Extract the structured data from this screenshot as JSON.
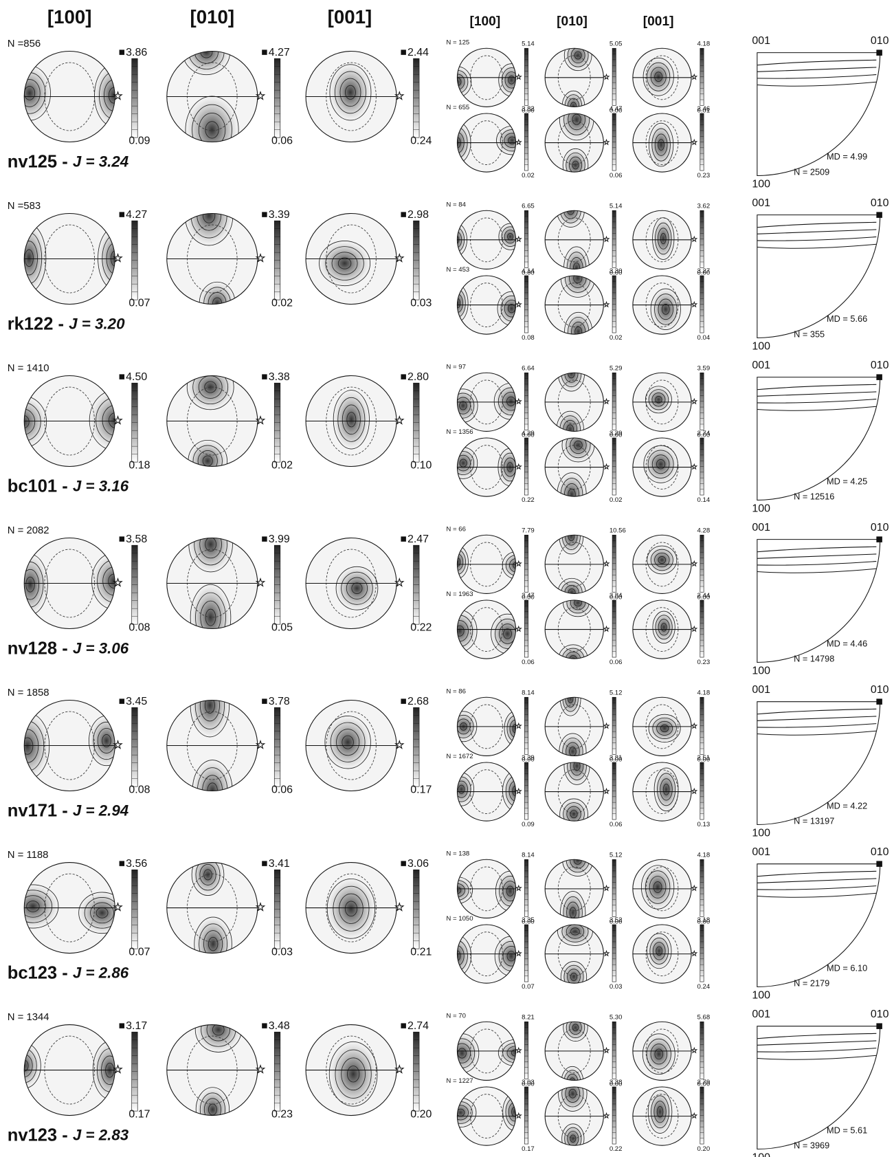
{
  "headers": {
    "large": [
      "[100]",
      "[010]",
      "[001]"
    ],
    "small": [
      "[100]",
      "[010]",
      "[001]"
    ]
  },
  "ipf_labels": {
    "top_left": "001",
    "top_right": "010",
    "bottom": "100"
  },
  "samples": [
    {
      "name": "nv125 -",
      "j": "J = 3.24",
      "n": "N =856",
      "large": [
        [
          "3.86",
          "0.09"
        ],
        [
          "4.27",
          "0.06"
        ],
        [
          "2.44",
          "0.24"
        ]
      ],
      "small": [
        {
          "n": "N = 125",
          "figs": [
            [
              "5.14",
              "0.00"
            ],
            [
              "5.05",
              "0.00"
            ],
            [
              "4.18",
              "0.01"
            ]
          ]
        },
        {
          "n": "N = 655",
          "figs": [
            [
              "3.82",
              "0.02"
            ],
            [
              "4.47",
              "0.06"
            ],
            [
              "2.46",
              "0.23"
            ]
          ]
        }
      ],
      "ipf": {
        "md": "MD = 4.99",
        "n": "N = 2509"
      }
    },
    {
      "name": "rk122 -",
      "j": "J = 3.20",
      "n": "N =583",
      "large": [
        [
          "4.27",
          "0.07"
        ],
        [
          "3.39",
          "0.02"
        ],
        [
          "2.98",
          "0.03"
        ]
      ],
      "small": [
        {
          "n": "N = 84",
          "figs": [
            [
              "6.65",
              "0.00"
            ],
            [
              "5.14",
              "0.00"
            ],
            [
              "3.62",
              "0.00"
            ]
          ]
        },
        {
          "n": "N = 453",
          "figs": [
            [
              "4.14",
              "0.08"
            ],
            [
              "3.30",
              "0.02"
            ],
            [
              "3.27",
              "0.04"
            ]
          ]
        }
      ],
      "ipf": {
        "md": "MD = 5.66",
        "n": "N = 355"
      }
    },
    {
      "name": "bc101 -",
      "j": "J = 3.16",
      "n": "N = 1410",
      "large": [
        [
          "4.50",
          "0.18"
        ],
        [
          "3.38",
          "0.02"
        ],
        [
          "2.80",
          "0.10"
        ]
      ],
      "small": [
        {
          "n": "N = 97",
          "figs": [
            [
              "6.64",
              "0.00"
            ],
            [
              "5.29",
              "0.00"
            ],
            [
              "3.59",
              "0.00"
            ]
          ]
        },
        {
          "n": "N = 1356",
          "figs": [
            [
              "4.29",
              "0.22"
            ],
            [
              "3.29",
              "0.02"
            ],
            [
              "2.74",
              "0.14"
            ]
          ]
        }
      ],
      "ipf": {
        "md": "MD = 4.25",
        "n": "N = 12516"
      }
    },
    {
      "name": "nv128 -",
      "j": "J = 3.06",
      "n": "N = 2082",
      "large": [
        [
          "3.58",
          "0.08"
        ],
        [
          "3.99",
          "0.05"
        ],
        [
          "2.47",
          "0.22"
        ]
      ],
      "small": [
        {
          "n": "N = 66",
          "figs": [
            [
              "7.79",
              "0.00"
            ],
            [
              "10.56",
              "0.00"
            ],
            [
              "4.28",
              "0.00"
            ]
          ]
        },
        {
          "n": "N = 1963",
          "figs": [
            [
              "3.47",
              "0.06"
            ],
            [
              "3.84",
              "0.06"
            ],
            [
              "2.44",
              "0.23"
            ]
          ]
        }
      ],
      "ipf": {
        "md": "MD = 4.46",
        "n": "N = 14798"
      }
    },
    {
      "name": "nv171 -",
      "j": "J = 2.94",
      "n": "N = 1858",
      "large": [
        [
          "3.45",
          "0.08"
        ],
        [
          "3.78",
          "0.06"
        ],
        [
          "2.68",
          "0.17"
        ]
      ],
      "small": [
        {
          "n": "N = 86",
          "figs": [
            [
              "8.14",
              "0.00"
            ],
            [
              "5.12",
              "0.00"
            ],
            [
              "4.18",
              "0.00"
            ]
          ]
        },
        {
          "n": "N = 1672",
          "figs": [
            [
              "3.39",
              "0.09"
            ],
            [
              "3.81",
              "0.06"
            ],
            [
              "2.51",
              "0.13"
            ]
          ]
        }
      ],
      "ipf": {
        "md": "MD = 4.22",
        "n": "N = 13197"
      }
    },
    {
      "name": "bc123 -",
      "j": "J = 2.86",
      "n": "N = 1188",
      "large": [
        [
          "3.56",
          "0.07"
        ],
        [
          "3.41",
          "0.03"
        ],
        [
          "3.06",
          "0.21"
        ]
      ],
      "small": [
        {
          "n": "N = 138",
          "figs": [
            [
              "8.14",
              "0.00"
            ],
            [
              "5.12",
              "0.00"
            ],
            [
              "4.18",
              "0.00"
            ]
          ]
        },
        {
          "n": "N = 1050",
          "figs": [
            [
              "3.35",
              "0.07"
            ],
            [
              "3.52",
              "0.03"
            ],
            [
              "3.18",
              "0.24"
            ]
          ]
        }
      ],
      "ipf": {
        "md": "MD = 6.10",
        "n": "N = 2179"
      }
    },
    {
      "name": "nv123 -",
      "j": "J = 2.83",
      "n": "N = 1344",
      "large": [
        [
          "3.17",
          "0.17"
        ],
        [
          "3.48",
          "0.23"
        ],
        [
          "2.74",
          "0.20"
        ]
      ],
      "small": [
        {
          "n": "N = 70",
          "figs": [
            [
              "8.21",
              "0.00"
            ],
            [
              "5.30",
              "0.00"
            ],
            [
              "5.68",
              "0.00"
            ]
          ]
        },
        {
          "n": "N = 1227",
          "figs": [
            [
              "3.03",
              "0.17"
            ],
            [
              "3.38",
              "0.22"
            ],
            [
              "2.79",
              "0.20"
            ]
          ]
        }
      ],
      "ipf": {
        "md": "MD = 5.61",
        "n": "N = 3969"
      }
    }
  ]
}
